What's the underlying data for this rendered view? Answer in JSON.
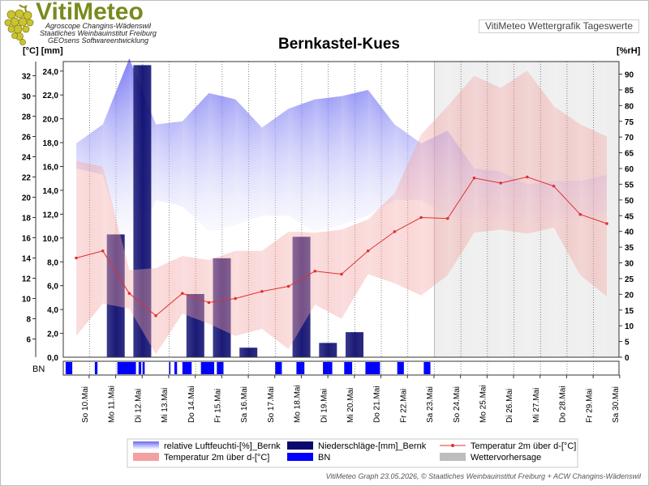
{
  "header": {
    "logo_title": "VitiMeteo",
    "logo_lines": [
      "Agroscope Changins-Wädenswil",
      "Staatliches Weinbauinstitut Freiburg",
      "GEOsens Softwareentwicklung"
    ],
    "subtitle": "VitiMeteo Wettergrafik Tageswerte"
  },
  "footer": "VitiMeteo Graph 23.05.2026, © Staatliches Weinbauinstitut Freiburg + ACW Changins-Wädenswil",
  "chart_data": {
    "type": "line",
    "title": "Bernkastel-Kues",
    "unit_left": "[°C] [mm]",
    "unit_right": "[%rH]",
    "x": [
      "So 10.Mai",
      "Mo 11.Mai",
      "Di 12.Mai",
      "Mi 13.Mai",
      "Do 14.Mai",
      "Fr 15.Mai",
      "Sa 16.Mai",
      "So 17.Mai",
      "Mo 18.Mai",
      "Di 19.Mai",
      "Mi 20.Mai",
      "Do 21.Mai",
      "Fr 22.Mai",
      "Sa 23.Mai",
      "So 24.Mai",
      "Mo 25.Mai",
      "Di 26.Mai",
      "Mi 27.Mai",
      "Do 28.Mai",
      "Fr 29.Mai",
      "Sa 30.Mai"
    ],
    "temp_axis": {
      "ticks": [
        6,
        8,
        10,
        12,
        14,
        16,
        18,
        20,
        22,
        24,
        26,
        28,
        30,
        32
      ],
      "range": [
        4.2,
        33.4
      ]
    },
    "precip_axis": {
      "ticks": [
        "2,0",
        "4,0",
        "6,0",
        "8,0",
        "10,0",
        "12,0",
        "14,0",
        "16,0",
        "18,0",
        "20,0",
        "22,0",
        "24,0"
      ],
      "zero_label": "0,0",
      "range": [
        0,
        24.8
      ]
    },
    "humidity_axis": {
      "ticks": [
        0,
        5,
        10,
        15,
        20,
        25,
        30,
        35,
        40,
        45,
        50,
        55,
        60,
        65,
        70,
        75,
        80,
        85,
        90
      ],
      "range": [
        0,
        94
      ]
    },
    "forecast_start": 14,
    "series": [
      {
        "name": "relative Luftfeuchti-[%]_Bernk",
        "kind": "band",
        "axis": "humidity",
        "color": "#6e6ef0",
        "upper": [
          68,
          74,
          95,
          74,
          75,
          84,
          82,
          73,
          79,
          82,
          83,
          85,
          74,
          68,
          72,
          60,
          59,
          55,
          56,
          56,
          58
        ],
        "lower": [
          60,
          58,
          30,
          50,
          48,
          40,
          42,
          45,
          45,
          40,
          42,
          45,
          50,
          50,
          45,
          44,
          44,
          42,
          44,
          44,
          46
        ]
      },
      {
        "name": "Niederschläge-[mm]_Bernk",
        "kind": "bar",
        "axis": "precip",
        "color": "#0a0a6e",
        "values": [
          0,
          10.3,
          24.5,
          0,
          5.3,
          8.3,
          0.8,
          0,
          10.1,
          1.2,
          2.1,
          0,
          0,
          0,
          0,
          0,
          0,
          0,
          0,
          0,
          0
        ]
      },
      {
        "name": "Temperatur 2m über d-[°C]",
        "kind": "line",
        "axis": "temp",
        "color": "#e03030",
        "values": [
          14.0,
          14.7,
          10.5,
          8.3,
          10.5,
          9.6,
          10.0,
          10.7,
          11.2,
          12.7,
          12.4,
          14.7,
          16.6,
          18.0,
          17.9,
          21.9,
          21.4,
          22.0,
          21.1,
          18.3,
          17.4
        ]
      },
      {
        "name": "Temperatur 2m über d-[°C]",
        "kind": "band",
        "axis": "temp",
        "color": "#f3a0a0",
        "upper": [
          23.6,
          23.0,
          12.8,
          13.0,
          14.2,
          13.8,
          14.7,
          14.7,
          16.6,
          16.5,
          16.8,
          17.8,
          20.4,
          26.2,
          29.0,
          32.0,
          30.8,
          32.5,
          29.0,
          27.2,
          26.0
        ],
        "lower": [
          6.3,
          9.5,
          9.0,
          4.5,
          8.5,
          7.5,
          6.3,
          7.0,
          5.0,
          9.4,
          8.0,
          12.4,
          11.5,
          10.3,
          12.3,
          16.5,
          16.8,
          16.4,
          17.0,
          12.3,
          10.2
        ]
      },
      {
        "name": "BN",
        "kind": "strip",
        "color": "#0000ff",
        "segments": [
          [
            -0.4,
            -0.15
          ],
          [
            0.7,
            0.8
          ],
          [
            1.55,
            2.25
          ],
          [
            2.35,
            2.45
          ],
          [
            2.5,
            2.58
          ],
          [
            3.5,
            3.55
          ],
          [
            3.7,
            3.8
          ],
          [
            4.0,
            4.35
          ],
          [
            4.7,
            5.2
          ],
          [
            5.3,
            5.55
          ],
          [
            7.5,
            7.75
          ],
          [
            8.3,
            8.6
          ],
          [
            9.3,
            9.65
          ],
          [
            10.1,
            10.4
          ],
          [
            10.9,
            11.45
          ],
          [
            12.1,
            12.35
          ],
          [
            13.1,
            13.35
          ]
        ]
      }
    ],
    "legend": [
      {
        "label": "relative Luftfeuchti-[%]_Bernk",
        "swatch": "band-blue"
      },
      {
        "label": "Niederschläge-[mm]_Bernk",
        "swatch": "bar-navy"
      },
      {
        "label": "Temperatur 2m über d-[°C]",
        "swatch": "line-red"
      },
      {
        "label": "Temperatur 2m über d-[°C]",
        "swatch": "band-pink"
      },
      {
        "label": "BN",
        "swatch": "bar-blue"
      },
      {
        "label": "Wettervorhersage",
        "swatch": "gray"
      }
    ],
    "strip_label": "BN",
    "grid": "vertical-dotted"
  }
}
